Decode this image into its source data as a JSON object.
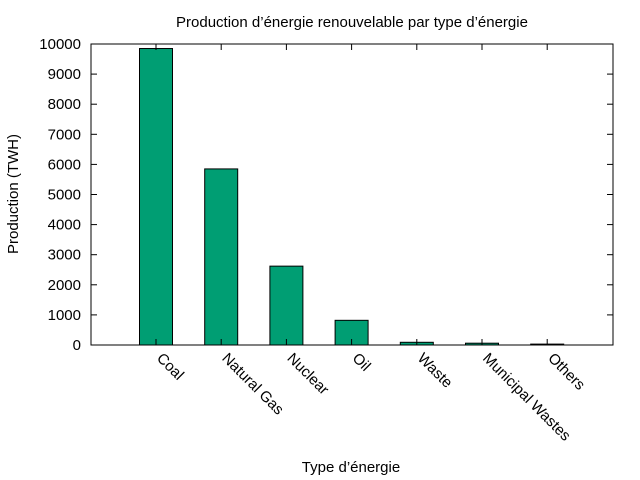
{
  "chart_data": {
    "type": "bar",
    "title": "Production d’énergie renouvelable par type d’énergie",
    "xlabel": "Type d’énergie",
    "ylabel": "Production (TWH)",
    "categories": [
      "Coal",
      "Natural Gas",
      "Nuclear",
      "Oil",
      "Waste",
      "Municipal Wastes",
      "Others"
    ],
    "values": [
      9850,
      5850,
      2620,
      820,
      90,
      60,
      30
    ],
    "ylim": [
      0,
      10000
    ],
    "yticks": [
      0,
      1000,
      2000,
      3000,
      4000,
      5000,
      6000,
      7000,
      8000,
      9000,
      10000
    ],
    "grid": false,
    "legend": "none",
    "bar_color": "#009e73"
  }
}
